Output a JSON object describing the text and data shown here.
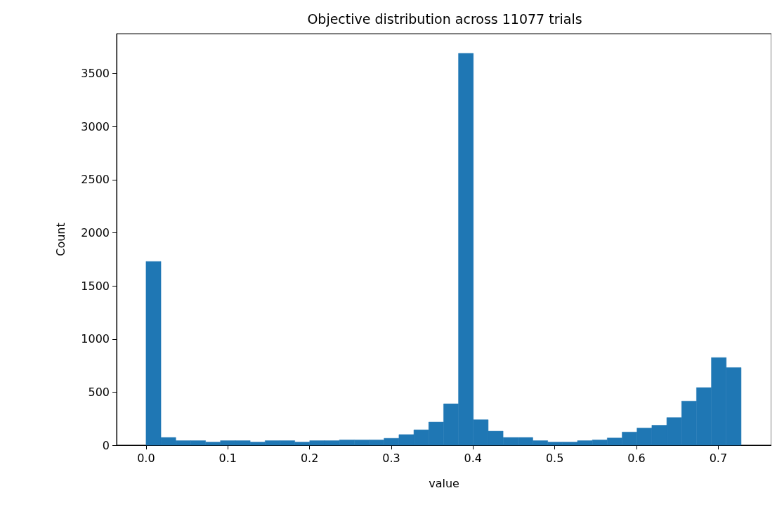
{
  "chart_data": {
    "type": "histogram",
    "title": "Objective distribution across 11077 trials",
    "xlabel": "value",
    "ylabel": "Count",
    "color": "#1f77b4",
    "bins": [
      0,
      0.0182,
      0.0364,
      0.0546,
      0.0728,
      0.091,
      0.1092,
      0.1274,
      0.1456,
      0.1638,
      0.182,
      0.2002,
      0.2184,
      0.2366,
      0.2548,
      0.273,
      0.2912,
      0.3094,
      0.3276,
      0.3458,
      0.364,
      0.3822,
      0.4004,
      0.4186,
      0.4368,
      0.455,
      0.4732,
      0.4914,
      0.5096,
      0.5278,
      0.546,
      0.5642,
      0.5824,
      0.6006,
      0.6188,
      0.637,
      0.6552,
      0.6734,
      0.6916,
      0.7098,
      0.728
    ],
    "values": [
      1730,
      73,
      43,
      43,
      30,
      43,
      43,
      30,
      43,
      43,
      30,
      43,
      43,
      50,
      50,
      50,
      65,
      100,
      145,
      218,
      390,
      3690,
      240,
      132,
      73,
      73,
      43,
      30,
      30,
      43,
      50,
      68,
      124,
      162,
      188,
      260,
      415,
      543,
      825,
      731
    ],
    "xlim": [
      -0.036,
      0.765
    ],
    "xticks": [
      {
        "value": 0,
        "label": "0.0"
      },
      {
        "value": 0.1,
        "label": "0.1"
      },
      {
        "value": 0.2,
        "label": "0.2"
      },
      {
        "value": 0.3,
        "label": "0.3"
      },
      {
        "value": 0.4,
        "label": "0.4"
      },
      {
        "value": 0.5,
        "label": "0.5"
      },
      {
        "value": 0.6,
        "label": "0.6"
      },
      {
        "value": 0.7,
        "label": "0.7"
      }
    ],
    "ylim": [
      0,
      3875
    ],
    "yticks": [
      0,
      500,
      1000,
      1500,
      2000,
      2500,
      3000,
      3500
    ],
    "grid": false
  }
}
